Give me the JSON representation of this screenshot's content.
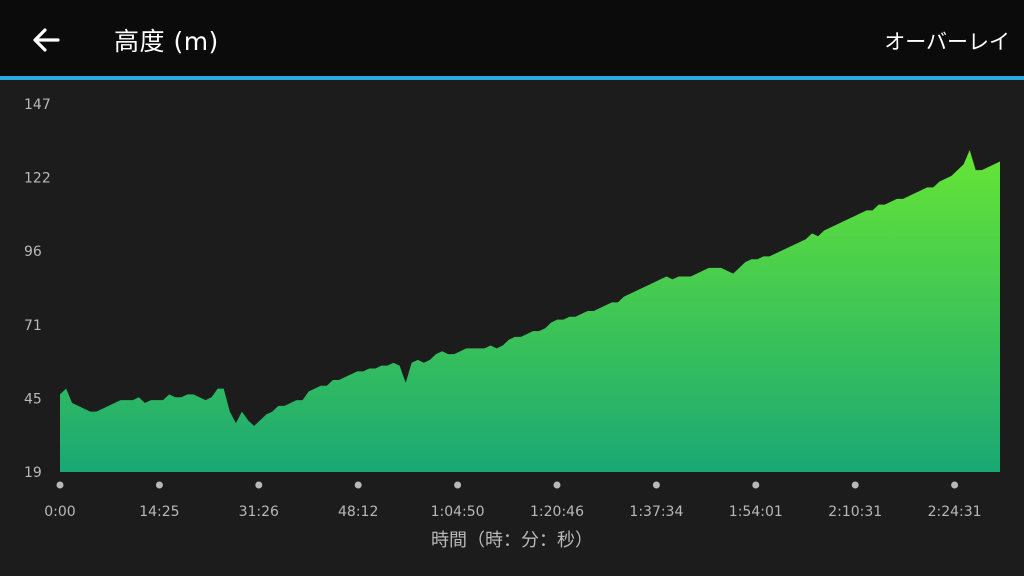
{
  "header": {
    "title": "高度 (m)",
    "overlay_label": "オーバーレイ",
    "back_icon": "arrow-left-icon"
  },
  "colors": {
    "accent": "#2aa7df",
    "fill_top": "#66e535",
    "fill_bottom": "#1aa874",
    "label": "#b8b8b8"
  },
  "chart_data": {
    "type": "area",
    "xlabel": "時間（時：分：秒）",
    "ylabel": "",
    "x_tick_labels": [
      "0:00",
      "14:25",
      "31:26",
      "48:12",
      "1:04:50",
      "1:20:46",
      "1:37:34",
      "1:54:01",
      "2:10:31",
      "2:24:31"
    ],
    "y_tick_labels": [
      "147",
      "122",
      "96",
      "71",
      "45",
      "19"
    ],
    "ylim": [
      19,
      147
    ],
    "x_range_minutes": [
      0,
      155
    ],
    "series": [
      {
        "x": [
          0,
          1,
          2,
          3,
          4,
          5,
          6,
          7,
          8,
          9,
          10,
          11,
          12,
          13,
          14,
          15,
          16,
          17,
          18,
          19,
          20,
          21,
          22,
          23,
          24,
          25,
          26,
          27,
          28,
          29,
          30,
          31,
          32,
          33,
          34,
          35,
          36,
          37,
          38,
          39,
          40,
          41,
          42,
          43,
          44,
          45,
          46,
          47,
          48,
          49,
          50,
          51,
          52,
          53,
          54,
          55,
          56,
          57,
          58,
          59,
          60,
          61,
          62,
          63,
          64,
          65,
          66,
          67,
          68,
          69,
          70,
          71,
          72,
          73,
          74,
          75,
          76,
          77,
          78,
          79,
          80,
          81,
          82,
          83,
          84,
          85,
          86,
          87,
          88,
          89,
          90,
          91,
          92,
          93,
          94,
          95,
          96,
          97,
          98,
          99,
          100,
          101,
          102,
          103,
          104,
          105,
          106,
          107,
          108,
          109,
          110,
          111,
          112,
          113,
          114,
          115,
          116,
          117,
          118,
          119,
          120,
          121,
          122,
          123,
          124,
          125,
          126,
          127,
          128,
          129,
          130,
          131,
          132,
          133,
          134,
          135,
          136,
          137,
          138,
          139,
          140,
          141,
          142,
          143,
          144,
          145,
          146,
          147,
          148,
          149,
          150,
          151,
          152,
          153,
          154,
          155
        ],
        "y": [
          46,
          48,
          43,
          42,
          41,
          40,
          40,
          41,
          42,
          43,
          44,
          44,
          44,
          45,
          43,
          44,
          44,
          44,
          46,
          45,
          45,
          46,
          46,
          45,
          44,
          45,
          48,
          48,
          40,
          36,
          40,
          37,
          35,
          37,
          39,
          40,
          42,
          42,
          43,
          44,
          44,
          47,
          48,
          49,
          49,
          51,
          51,
          52,
          53,
          54,
          54,
          55,
          55,
          56,
          56,
          57,
          56,
          50,
          57,
          58,
          57,
          58,
          60,
          61,
          60,
          60,
          61,
          62,
          62,
          62,
          62,
          63,
          62,
          63,
          65,
          66,
          66,
          67,
          68,
          68,
          69,
          71,
          72,
          72,
          73,
          73,
          74,
          75,
          75,
          76,
          77,
          78,
          78,
          80,
          81,
          82,
          83,
          84,
          85,
          86,
          87,
          86,
          87,
          87,
          87,
          88,
          89,
          90,
          90,
          90,
          89,
          88,
          90,
          92,
          93,
          93,
          94,
          94,
          95,
          96,
          97,
          98,
          99,
          100,
          102,
          101,
          103,
          104,
          105,
          106,
          107,
          108,
          109,
          110,
          110,
          112,
          112,
          113,
          114,
          114,
          115,
          116,
          117,
          118,
          118,
          120,
          121,
          122,
          124,
          126,
          131,
          124,
          124,
          125,
          126,
          127
        ]
      }
    ],
    "grid": false,
    "legend": "none"
  }
}
